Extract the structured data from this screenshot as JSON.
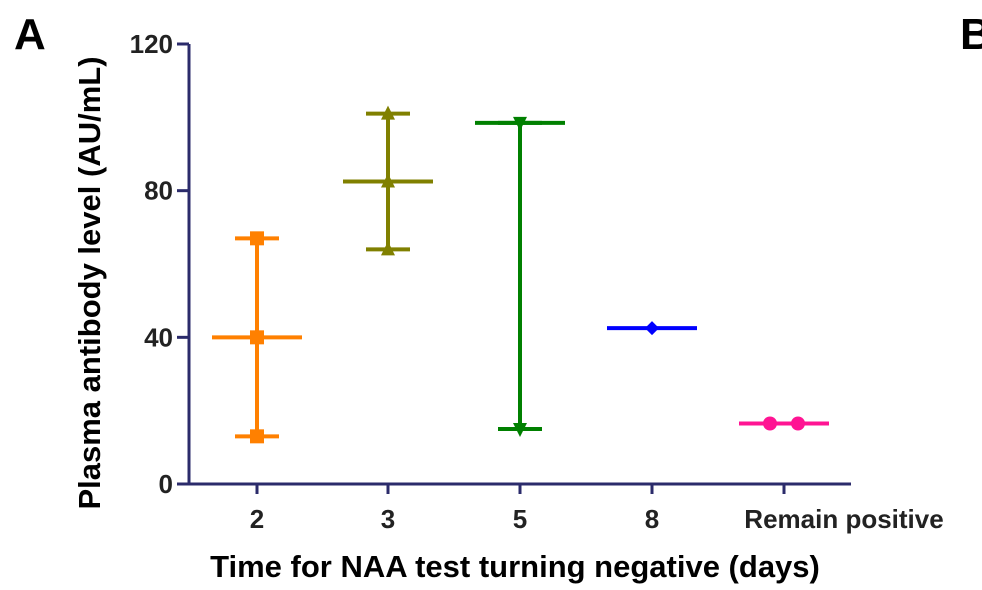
{
  "panels": {
    "left": "A",
    "right": "B"
  },
  "chart_data": {
    "type": "scatter",
    "subtype": "range-with-median",
    "xlabel": "Time for NAA test turning negative (days)",
    "ylabel": "Plasma antibody level (AU/mL)",
    "ylim": [
      0,
      120
    ],
    "yticks": [
      0,
      40,
      80,
      120
    ],
    "categories": [
      "2",
      "3",
      "5",
      "8",
      "Remain positive"
    ],
    "grid": false,
    "series": [
      {
        "category": "2",
        "color": "#FF8000",
        "marker": "square",
        "values": [
          13,
          40,
          67
        ],
        "median": 40,
        "min": 13,
        "max": 67
      },
      {
        "category": "3",
        "color": "#808000",
        "marker": "triangle-up",
        "values": [
          64,
          82.5,
          101
        ],
        "median": 82.5,
        "min": 64,
        "max": 101
      },
      {
        "category": "5",
        "color": "#008000",
        "marker": "triangle-down",
        "values": [
          15,
          98.5
        ],
        "median": 98.5,
        "min": 15,
        "max": 98.5
      },
      {
        "category": "8",
        "color": "#0000FF",
        "marker": "diamond",
        "values": [
          42.5
        ],
        "median": 42.5,
        "min": 42.5,
        "max": 42.5
      },
      {
        "category": "Remain positive",
        "color": "#FF1493",
        "marker": "circle",
        "values": [
          16.5,
          16.5
        ],
        "median": 16.5,
        "min": 16.5,
        "max": 16.5
      }
    ]
  }
}
